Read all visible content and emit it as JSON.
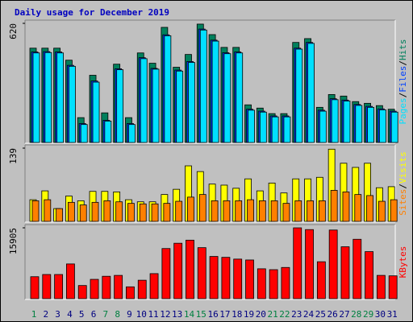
{
  "legend_separator": "/",
  "chart_data": [
    {
      "type": "bar",
      "title": "Daily usage for December 2019",
      "ylim": [
        0,
        620
      ],
      "yticks": [
        620
      ],
      "series": [
        {
          "name": "Pages",
          "color": "#00e0ff",
          "values": [
            465,
            467,
            465,
            395,
            90,
            312,
            108,
            377,
            90,
            435,
            380,
            555,
            370,
            415,
            585,
            527,
            461,
            465,
            165,
            155,
            130,
            130,
            485,
            515,
            160,
            220,
            213,
            190,
            180,
            167,
            155
          ]
        },
        {
          "name": "Files",
          "color": "#0040ff",
          "values": [
            470,
            472,
            470,
            400,
            95,
            318,
            112,
            382,
            95,
            440,
            384,
            560,
            375,
            420,
            590,
            532,
            466,
            470,
            170,
            160,
            135,
            135,
            490,
            520,
            165,
            225,
            218,
            195,
            185,
            172,
            160
          ]
        },
        {
          "name": "Hits",
          "color": "#00805c",
          "values": [
            490,
            490,
            490,
            427,
            126,
            348,
            151,
            406,
            126,
            465,
            411,
            599,
            390,
            457,
            616,
            561,
            494,
            494,
            193,
            176,
            147,
            147,
            520,
            540,
            180,
            247,
            239,
            210,
            201,
            189,
            170
          ]
        }
      ]
    },
    {
      "type": "bar",
      "ylim": [
        0,
        139
      ],
      "yticks": [
        139
      ],
      "series": [
        {
          "name": "Sites",
          "color": "#ff8000",
          "values": [
            38,
            40,
            23,
            35,
            30,
            35,
            38,
            36,
            33,
            32,
            32,
            33,
            37,
            45,
            50,
            38,
            38,
            38,
            40,
            38,
            38,
            33,
            38,
            38,
            38,
            58,
            55,
            50,
            48,
            37,
            40
          ]
        },
        {
          "name": "Visits",
          "color": "#ffff00",
          "values": [
            40,
            57,
            23,
            47,
            38,
            56,
            56,
            55,
            40,
            36,
            36,
            50,
            60,
            105,
            94,
            70,
            68,
            62,
            80,
            57,
            72,
            53,
            80,
            80,
            83,
            137,
            110,
            102,
            110,
            63,
            65
          ]
        }
      ]
    },
    {
      "type": "bar",
      "ylim": [
        0,
        15905
      ],
      "yticks": [
        15905
      ],
      "categories": [
        "1",
        "2",
        "3",
        "4",
        "5",
        "6",
        "7",
        "8",
        "9",
        "10",
        "11",
        "12",
        "13",
        "14",
        "15",
        "16",
        "17",
        "18",
        "19",
        "20",
        "21",
        "22",
        "23",
        "24",
        "25",
        "26",
        "27",
        "28",
        "29",
        "30",
        "31"
      ],
      "category_colors": [
        "#008040",
        "#000080",
        "#000080",
        "#000080",
        "#000080",
        "#000080",
        "#008040",
        "#008040",
        "#000080",
        "#000080",
        "#000080",
        "#000080",
        "#000080",
        "#008040",
        "#008040",
        "#000080",
        "#000080",
        "#000080",
        "#000080",
        "#000080",
        "#008040",
        "#008040",
        "#000080",
        "#000080",
        "#000080",
        "#000080",
        "#000080",
        "#008040",
        "#008040",
        "#000080",
        "#000080"
      ],
      "series": [
        {
          "name": "KBytes",
          "color": "#ff0000",
          "values": [
            4800,
            5300,
            5300,
            7700,
            2800,
            4200,
            4900,
            5100,
            2500,
            4000,
            5500,
            11200,
            12400,
            13100,
            11400,
            9400,
            9200,
            8800,
            8600,
            6600,
            6400,
            6900,
            15900,
            15500,
            8200,
            15400,
            11600,
            13300,
            10500,
            5100,
            5000
          ]
        }
      ]
    }
  ]
}
